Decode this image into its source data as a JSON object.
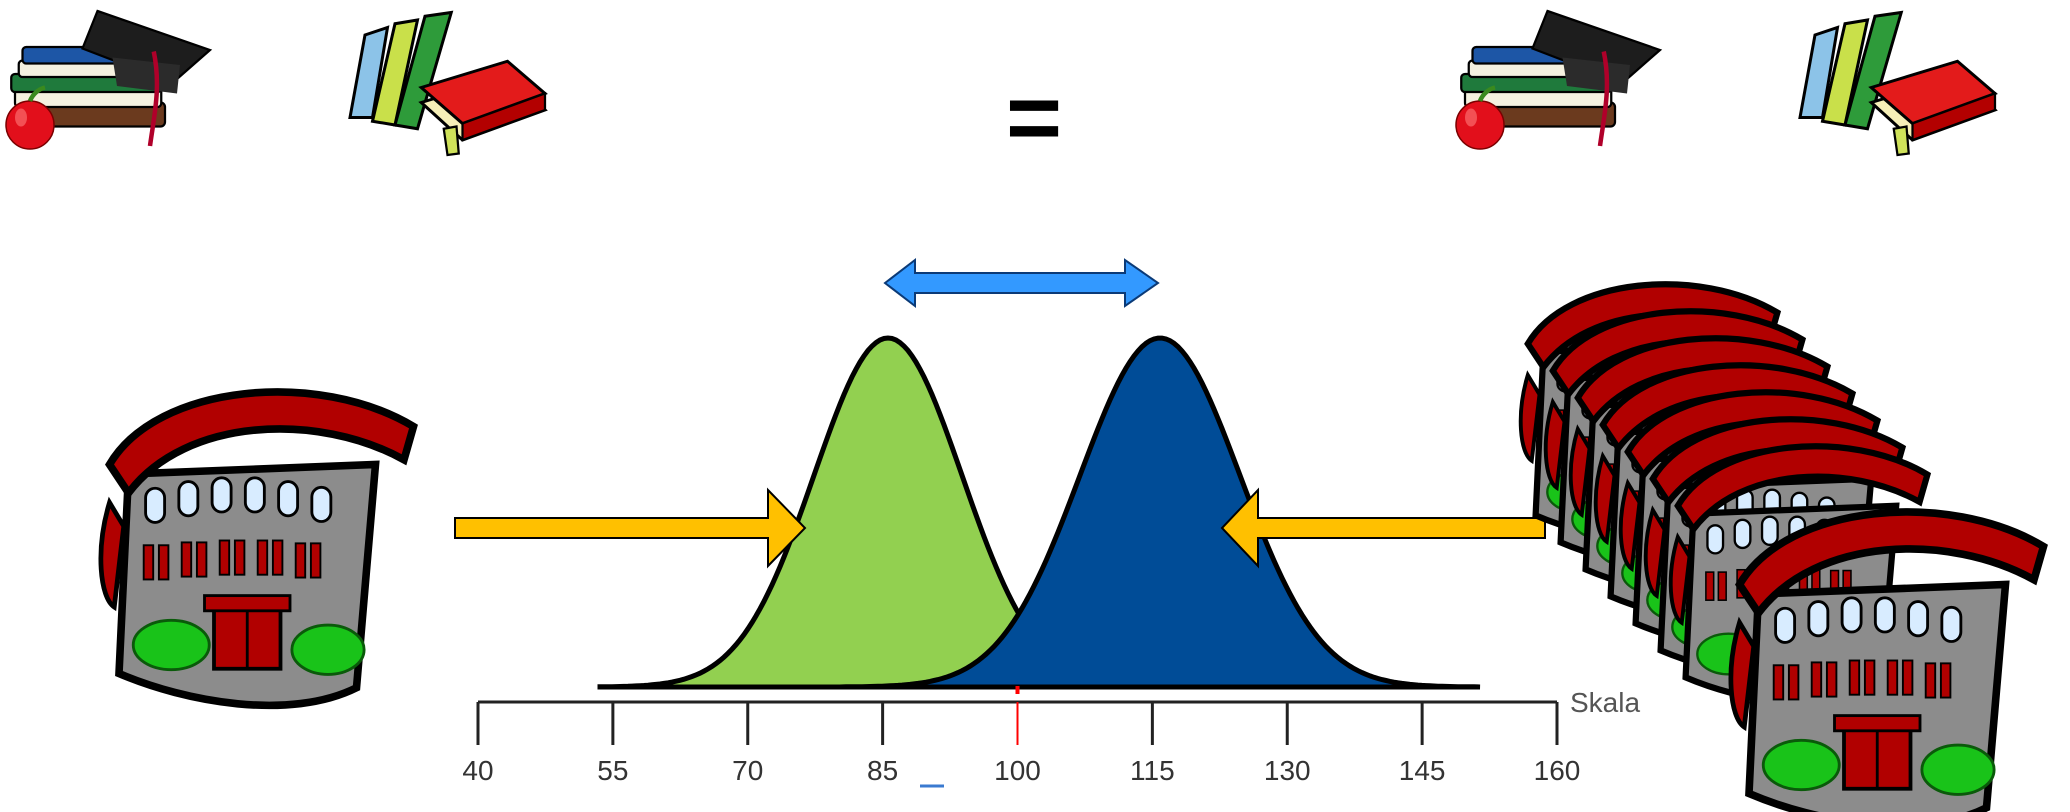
{
  "equation": {
    "symbol": "="
  },
  "scale": {
    "label": "Skala",
    "ticks": [
      "40",
      "55",
      "70",
      "85",
      "100",
      "115",
      "130",
      "145",
      "160"
    ],
    "highlight_tick": "100",
    "highlight_color": "#ff0000"
  },
  "colors": {
    "green_distribution": "#92d050",
    "blue_distribution": "#004c97",
    "yellow_arrow": "#ffc000",
    "blue_arrow": "#3399ff",
    "roof_red": "#b10000",
    "wall_grey": "#8c8c8c",
    "bush_green": "#19c319"
  },
  "icons": {
    "left_books": [
      "books-graduation-cap-icon",
      "books-stack-icon"
    ],
    "right_books": [
      "books-graduation-cap-icon",
      "books-stack-icon"
    ],
    "left_school": "school-building-icon",
    "right_schools": "school-buildings-stack-icon"
  }
}
